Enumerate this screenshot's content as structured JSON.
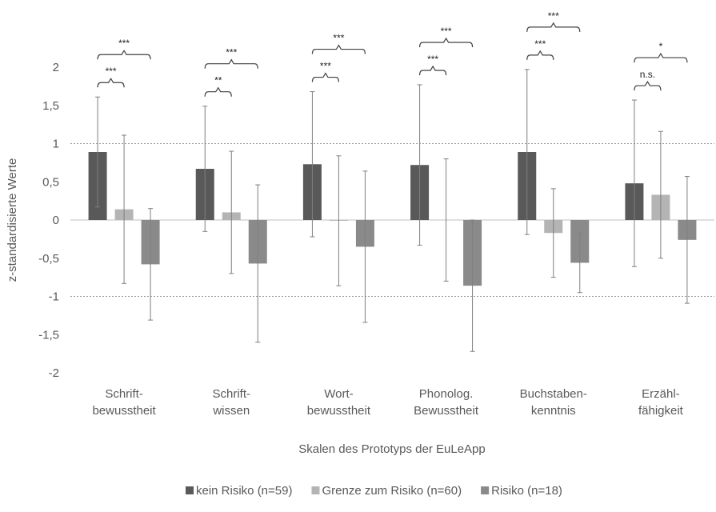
{
  "chart_data": {
    "type": "bar",
    "y_label": "z-standardisierte Werte",
    "x_label": "Skalen des Prototyps der EuLeApp",
    "categories": [
      [
        "Schrift-",
        "bewusstheit"
      ],
      [
        "Schrift-",
        "wissen"
      ],
      [
        "Wort-",
        "bewusstheit"
      ],
      [
        "Phonolog.",
        "Bewusstheit"
      ],
      [
        "Buchstaben-",
        "kenntnis"
      ],
      [
        "Erzähl-",
        "fähigkeit"
      ]
    ],
    "series": [
      {
        "name": "kein Risiko (n=59)",
        "color": "#595959",
        "values": [
          0.89,
          0.67,
          0.73,
          0.72,
          0.89,
          0.48
        ],
        "errors": [
          0.72,
          0.82,
          0.95,
          1.05,
          1.08,
          1.09
        ]
      },
      {
        "name": "Grenze zum Risiko (n=60)",
        "color": "#b4b4b4",
        "values": [
          0.14,
          0.1,
          -0.01,
          0.0,
          -0.17,
          0.33
        ],
        "errors": [
          0.97,
          0.8,
          0.85,
          0.8,
          0.58,
          0.83
        ]
      },
      {
        "name": "Risiko (n=18)",
        "color": "#8a8a8a",
        "values": [
          -0.58,
          -0.57,
          -0.35,
          -0.86,
          -0.56,
          -0.26
        ],
        "errors": [
          0.73,
          1.03,
          0.99,
          0.86,
          0.39,
          0.83
        ]
      }
    ],
    "significance": [
      [
        "***",
        "***"
      ],
      [
        "**",
        "***"
      ],
      [
        "***",
        "***"
      ],
      [
        "***",
        "***"
      ],
      [
        "***",
        "***"
      ],
      [
        "n.s.",
        "*"
      ]
    ],
    "ylim": [
      -2,
      2
    ],
    "yticks": [
      -2,
      {
        "value": -1.5,
        "label": "-1,5"
      },
      -1,
      {
        "value": -0.5,
        "label": "-0,5"
      },
      0,
      {
        "value": 0.5,
        "label": "0,5"
      },
      1,
      {
        "value": 1.5,
        "label": "1,5"
      },
      2
    ],
    "reference_lines": [
      1,
      -1
    ],
    "legend": "bottom"
  }
}
